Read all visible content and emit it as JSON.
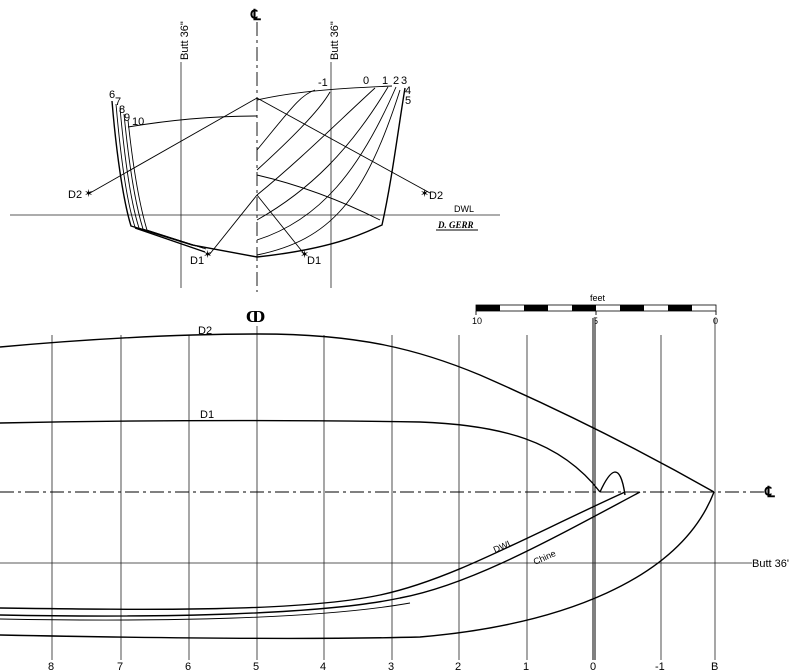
{
  "body_plan": {
    "centerline_symbol": "℄",
    "buttock_label_left": "Butt 36\"",
    "buttock_label_right": "Butt 36\"",
    "station_labels_right": [
      "-1",
      "0",
      "1",
      "2",
      "3",
      "4",
      "5"
    ],
    "station_labels_left": [
      "6",
      "7",
      "8",
      "9",
      "10"
    ],
    "diagonal_labels": [
      "D2",
      "D2",
      "D1",
      "D1"
    ],
    "waterline_label": "DWL",
    "signature": "D. GERR"
  },
  "half_breadth": {
    "midship_symbol": "ↀ",
    "diagonal_labels": [
      "D2",
      "D1"
    ],
    "waterline_label": "DWL",
    "chine_label": "Chine",
    "centerline_symbol": "℄",
    "buttock_label": "Butt 36'",
    "station_labels": [
      "8",
      "7",
      "6",
      "5",
      "4",
      "3",
      "2",
      "1",
      "0",
      "-1",
      "B"
    ]
  },
  "scale_bar": {
    "unit_label": "feet",
    "tick_labels": [
      "10",
      "5",
      "0"
    ]
  }
}
